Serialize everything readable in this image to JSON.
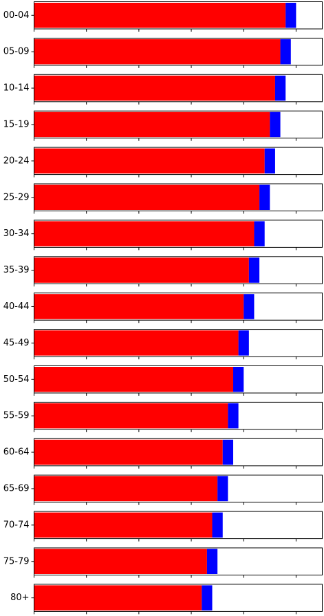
{
  "chart_data": {
    "type": "bar",
    "orientation": "horizontal",
    "stacked": true,
    "layout": "small-multiples",
    "title": "",
    "xlabel": "",
    "ylabel": "",
    "xlim": [
      0,
      110
    ],
    "grid": false,
    "legend": "none",
    "categories": [
      "00-04",
      "05-09",
      "10-14",
      "15-19",
      "20-24",
      "25-29",
      "30-34",
      "35-39",
      "40-44",
      "45-49",
      "50-54",
      "55-59",
      "60-64",
      "65-69",
      "70-74",
      "75-79",
      "80+"
    ],
    "series": [
      {
        "color": "#ff0000",
        "values": [
          96.0,
          94.0,
          92.0,
          90.0,
          88.0,
          86.0,
          84.0,
          82.0,
          80.0,
          78.0,
          76.0,
          74.0,
          72.0,
          70.0,
          68.0,
          66.0,
          64.0
        ]
      },
      {
        "color": "#0000ff",
        "values": [
          4.0,
          4.0,
          4.0,
          4.0,
          4.0,
          4.0,
          4.0,
          4.0,
          4.0,
          4.0,
          4.0,
          4.0,
          4.0,
          4.0,
          4.0,
          4.0,
          4.0
        ]
      }
    ]
  }
}
